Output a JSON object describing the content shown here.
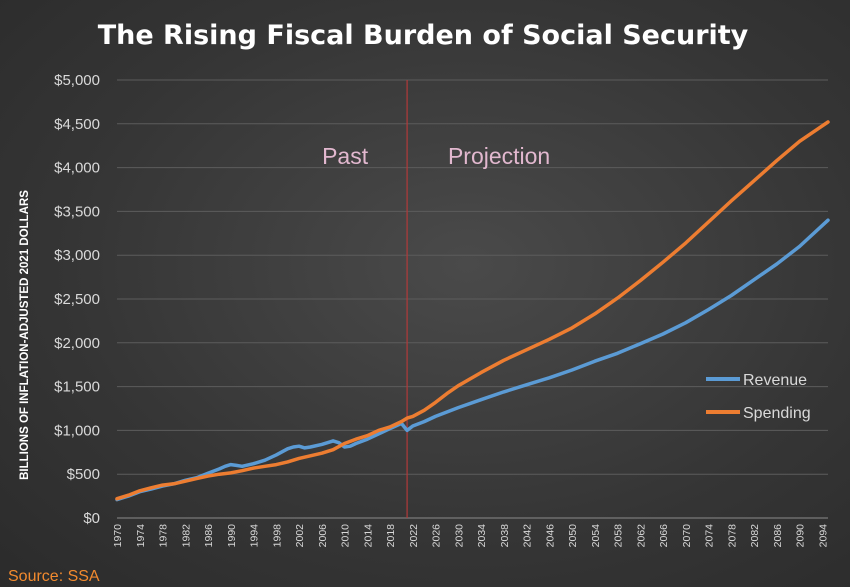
{
  "chart_data": {
    "type": "line",
    "title": "The Rising Fiscal Burden of Social Security",
    "ylabel": "BILLIONS OF INFLATION-ADJUSTED 2021 DOLLARS",
    "xlabel": "",
    "source": "Source: SSA",
    "ylim": [
      0,
      5000
    ],
    "xlim": [
      1970,
      2095
    ],
    "grid": "horizontal",
    "legend_position": "right",
    "y_ticks": [
      0,
      500,
      1000,
      1500,
      2000,
      2500,
      3000,
      3500,
      4000,
      4500,
      5000
    ],
    "y_tick_labels": [
      "$0",
      "$500",
      "$1,000",
      "$1,500",
      "$2,000",
      "$2,500",
      "$3,000",
      "$3,500",
      "$4,000",
      "$4,500",
      "$5,000"
    ],
    "x_tick_labels": [
      "1970",
      "1974",
      "1978",
      "1982",
      "1986",
      "1990",
      "1994",
      "1998",
      "2002",
      "2006",
      "2010",
      "2014",
      "2018",
      "2022",
      "2026",
      "2030",
      "2034",
      "2038",
      "2042",
      "2046",
      "2050",
      "2054",
      "2058",
      "2062",
      "2066",
      "2070",
      "2074",
      "2078",
      "2082",
      "2086",
      "2090",
      "2094"
    ],
    "divider_year": 2021,
    "annotations": {
      "left": "Past",
      "right": "Projection"
    },
    "series": [
      {
        "name": "Revenue",
        "color": "#5b9bd5",
        "x": [
          1970,
          1972,
          1974,
          1976,
          1978,
          1980,
          1982,
          1984,
          1986,
          1988,
          1989,
          1990,
          1991,
          1992,
          1994,
          1996,
          1998,
          2000,
          2001,
          2002,
          2003,
          2004,
          2006,
          2007,
          2008,
          2009,
          2010,
          2011,
          2012,
          2014,
          2016,
          2018,
          2019,
          2020,
          2021,
          2022,
          2024,
          2026,
          2030,
          2034,
          2038,
          2042,
          2046,
          2050,
          2054,
          2058,
          2062,
          2066,
          2070,
          2074,
          2078,
          2082,
          2086,
          2090,
          2095
        ],
        "y": [
          210,
          250,
          300,
          330,
          365,
          390,
          430,
          460,
          510,
          560,
          590,
          610,
          600,
          590,
          620,
          660,
          720,
          790,
          810,
          820,
          800,
          810,
          840,
          860,
          880,
          860,
          810,
          820,
          850,
          900,
          960,
          1020,
          1050,
          1080,
          1000,
          1050,
          1100,
          1160,
          1260,
          1350,
          1440,
          1520,
          1600,
          1690,
          1790,
          1880,
          1990,
          2100,
          2230,
          2380,
          2540,
          2720,
          2900,
          3100,
          3400
        ]
      },
      {
        "name": "Spending",
        "color": "#ed7d31",
        "x": [
          1970,
          1972,
          1974,
          1976,
          1978,
          1980,
          1982,
          1984,
          1986,
          1988,
          1990,
          1992,
          1994,
          1996,
          1998,
          2000,
          2002,
          2004,
          2006,
          2008,
          2010,
          2012,
          2014,
          2016,
          2018,
          2020,
          2021,
          2022,
          2024,
          2026,
          2028,
          2030,
          2034,
          2038,
          2042,
          2046,
          2050,
          2054,
          2058,
          2062,
          2066,
          2070,
          2074,
          2078,
          2082,
          2086,
          2090,
          2095
        ],
        "y": [
          220,
          260,
          310,
          345,
          375,
          390,
          420,
          450,
          480,
          500,
          515,
          540,
          570,
          590,
          610,
          640,
          680,
          710,
          740,
          780,
          850,
          900,
          940,
          1000,
          1040,
          1100,
          1140,
          1160,
          1230,
          1320,
          1420,
          1510,
          1660,
          1800,
          1920,
          2040,
          2170,
          2330,
          2510,
          2710,
          2920,
          3140,
          3380,
          3620,
          3850,
          4080,
          4300,
          4520
        ]
      }
    ]
  }
}
